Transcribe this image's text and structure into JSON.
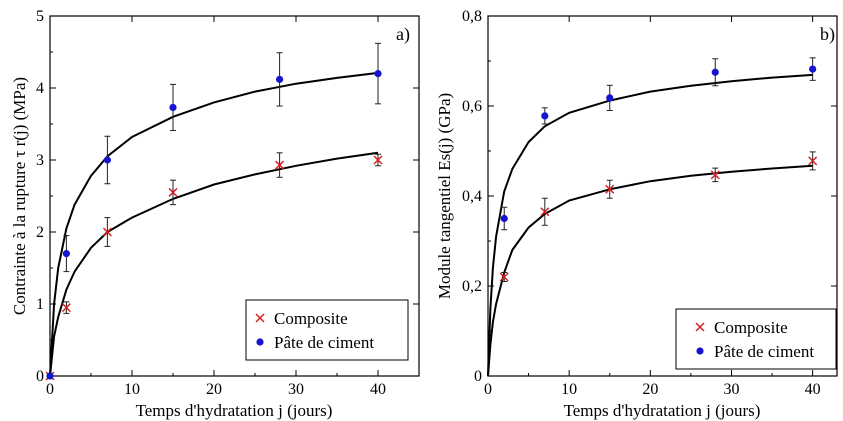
{
  "chart_data": [
    {
      "type": "scatter",
      "panel_label": "a)",
      "xlabel": "Temps d'hydratation j (jours)",
      "ylabel": "Contrainte à la rupture τ r(j) (MPa)",
      "xlim": [
        0,
        45
      ],
      "ylim": [
        0,
        5
      ],
      "x_ticks": [
        "0",
        "10",
        "20",
        "30",
        "40"
      ],
      "y_ticks": [
        "0",
        "1",
        "2",
        "3",
        "4",
        "5"
      ],
      "legend_position": "bottom-right",
      "series": [
        {
          "name": "Composite",
          "marker": "x",
          "color": "#d62020",
          "x": [
            0,
            2,
            7,
            15,
            28,
            40
          ],
          "y": [
            0,
            0.95,
            2.0,
            2.55,
            2.93,
            3.0
          ],
          "err": [
            0,
            0.08,
            0.2,
            0.17,
            0.17,
            0.08
          ],
          "fit": [
            [
              0,
              0
            ],
            [
              0.5,
              0.55
            ],
            [
              1,
              0.82
            ],
            [
              2,
              1.2
            ],
            [
              3,
              1.45
            ],
            [
              5,
              1.78
            ],
            [
              7,
              2.0
            ],
            [
              10,
              2.2
            ],
            [
              15,
              2.46
            ],
            [
              20,
              2.66
            ],
            [
              25,
              2.8
            ],
            [
              30,
              2.92
            ],
            [
              35,
              3.02
            ],
            [
              40,
              3.1
            ]
          ]
        },
        {
          "name": "Pâte de ciment",
          "marker": "dot",
          "color": "#1515d0",
          "x": [
            0,
            2,
            7,
            15,
            28,
            40
          ],
          "y": [
            0,
            1.7,
            3.0,
            3.73,
            4.12,
            4.2
          ],
          "err": [
            0,
            0.25,
            0.33,
            0.32,
            0.37,
            0.42
          ],
          "fit": [
            [
              0,
              0
            ],
            [
              0.5,
              1.0
            ],
            [
              1,
              1.5
            ],
            [
              2,
              2.05
            ],
            [
              3,
              2.38
            ],
            [
              5,
              2.78
            ],
            [
              7,
              3.05
            ],
            [
              10,
              3.32
            ],
            [
              15,
              3.6
            ],
            [
              20,
              3.8
            ],
            [
              25,
              3.95
            ],
            [
              30,
              4.06
            ],
            [
              35,
              4.14
            ],
            [
              40,
              4.21
            ]
          ]
        }
      ]
    },
    {
      "type": "scatter",
      "panel_label": "b)",
      "xlabel": "Temps d'hydratation j (jours)",
      "ylabel": "Module tangentiel Es(j) (GPa)",
      "xlim": [
        0,
        43
      ],
      "ylim": [
        0,
        0.8
      ],
      "x_ticks": [
        "0",
        "10",
        "20",
        "30",
        "40"
      ],
      "y_ticks": [
        "0",
        "0,2",
        "0,4",
        "0,6",
        "0,8"
      ],
      "legend_position": "bottom-right",
      "series": [
        {
          "name": "Composite",
          "marker": "x",
          "color": "#d62020",
          "x": [
            2,
            7,
            15,
            28,
            40
          ],
          "y": [
            0.22,
            0.365,
            0.415,
            0.447,
            0.478
          ],
          "err": [
            0.01,
            0.03,
            0.02,
            0.015,
            0.02
          ],
          "fit": [
            [
              0,
              0
            ],
            [
              0.3,
              0.07
            ],
            [
              0.6,
              0.12
            ],
            [
              1,
              0.16
            ],
            [
              2,
              0.23
            ],
            [
              3,
              0.28
            ],
            [
              5,
              0.33
            ],
            [
              7,
              0.36
            ],
            [
              10,
              0.39
            ],
            [
              15,
              0.415
            ],
            [
              20,
              0.433
            ],
            [
              25,
              0.445
            ],
            [
              30,
              0.454
            ],
            [
              35,
              0.461
            ],
            [
              40,
              0.467
            ]
          ]
        },
        {
          "name": "Pâte de ciment",
          "marker": "dot",
          "color": "#1515d0",
          "x": [
            2,
            7,
            15,
            28,
            40
          ],
          "y": [
            0.35,
            0.578,
            0.618,
            0.675,
            0.682
          ],
          "err": [
            0.025,
            0.018,
            0.028,
            0.03,
            0.025
          ],
          "fit": [
            [
              0,
              0
            ],
            [
              0.3,
              0.15
            ],
            [
              0.6,
              0.24
            ],
            [
              1,
              0.31
            ],
            [
              2,
              0.41
            ],
            [
              3,
              0.46
            ],
            [
              5,
              0.52
            ],
            [
              7,
              0.555
            ],
            [
              10,
              0.585
            ],
            [
              15,
              0.612
            ],
            [
              20,
              0.632
            ],
            [
              25,
              0.645
            ],
            [
              30,
              0.655
            ],
            [
              35,
              0.663
            ],
            [
              40,
              0.669
            ]
          ]
        }
      ]
    }
  ]
}
